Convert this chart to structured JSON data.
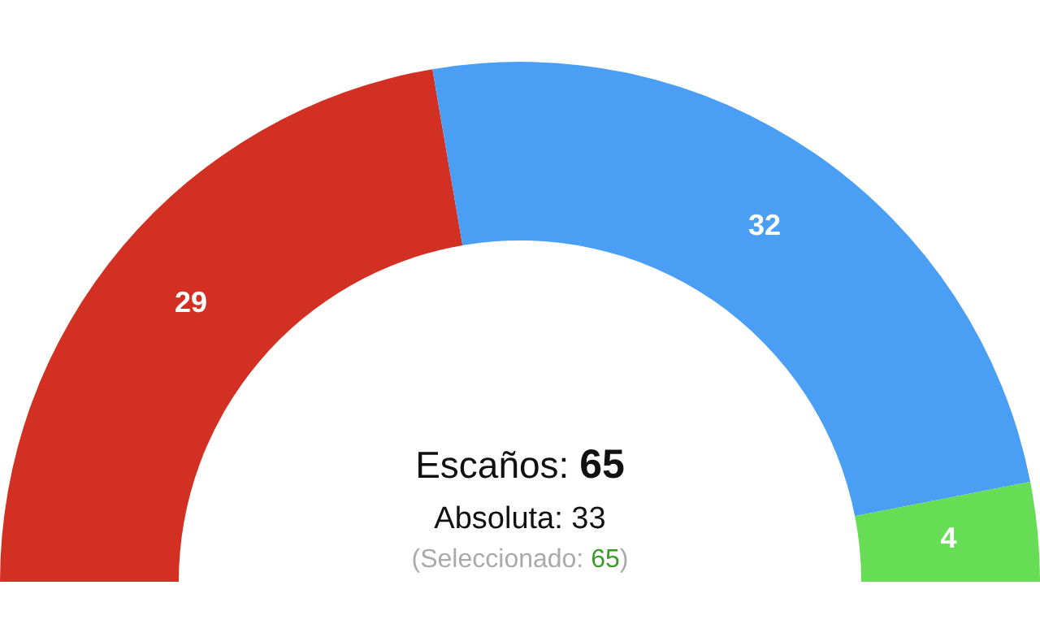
{
  "chart_data": {
    "type": "donut",
    "categories": [
      null,
      null,
      null
    ],
    "values": [
      29,
      32,
      4
    ],
    "colors": [
      "#d13023",
      "#4a9ff5",
      "#66dd55"
    ],
    "data_labels": true,
    "annotations": [
      "Escaños: 65",
      "Absoluta: 33",
      "(Seleccionado: 65)"
    ]
  }
}
